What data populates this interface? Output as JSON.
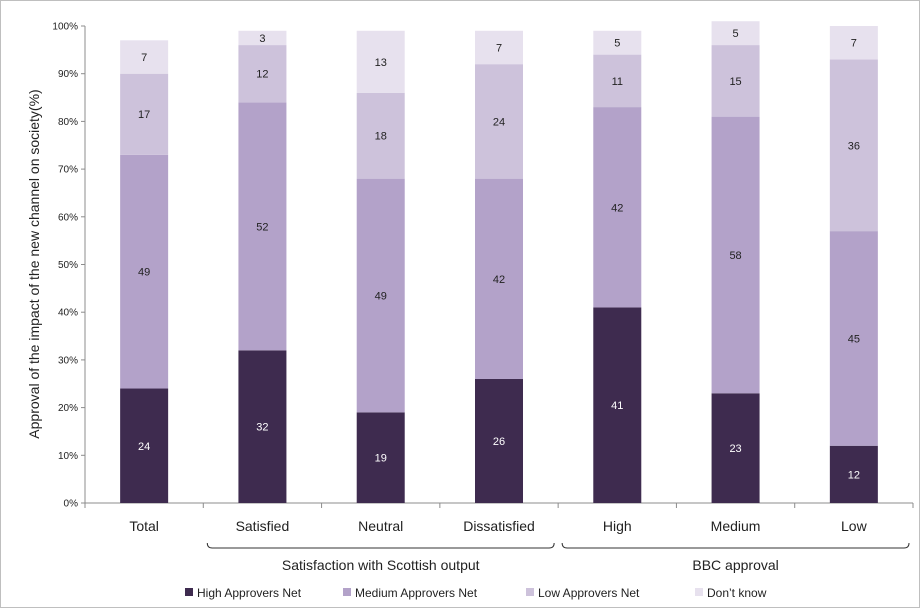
{
  "chart_data": {
    "type": "bar",
    "stacked": true,
    "ylabel": "Approval of the impact of the new channel on society(%)",
    "ylim": [
      0,
      100
    ],
    "yticks": [
      "0%",
      "10%",
      "20%",
      "30%",
      "40%",
      "50%",
      "60%",
      "70%",
      "80%",
      "90%",
      "100%"
    ],
    "categories": [
      "Total",
      "Satisfied",
      "Neutral",
      "Dissatisfied",
      "High",
      "Medium",
      "Low"
    ],
    "groups": [
      {
        "label": "Satisfaction with Scottish output",
        "categories": [
          "Satisfied",
          "Neutral",
          "Dissatisfied"
        ]
      },
      {
        "label": "BBC approval",
        "categories": [
          "High",
          "Medium",
          "Low"
        ]
      }
    ],
    "series": [
      {
        "name": "High Approvers Net",
        "color": "#3e2b4f",
        "label_color": "#ffffff",
        "values": [
          24,
          32,
          19,
          26,
          41,
          23,
          12
        ]
      },
      {
        "name": "Medium Approvers Net",
        "color": "#b3a2c9",
        "label_color": "#222222",
        "values": [
          49,
          52,
          49,
          42,
          42,
          58,
          45
        ]
      },
      {
        "name": "Low Approvers Net",
        "color": "#cdc2db",
        "label_color": "#222222",
        "values": [
          17,
          12,
          18,
          24,
          11,
          15,
          36
        ]
      },
      {
        "name": "Don’t know",
        "color": "#e7e1ee",
        "label_color": "#222222",
        "values": [
          7,
          3,
          13,
          7,
          5,
          5,
          7
        ]
      }
    ],
    "legend_position": "bottom",
    "grid": false
  }
}
